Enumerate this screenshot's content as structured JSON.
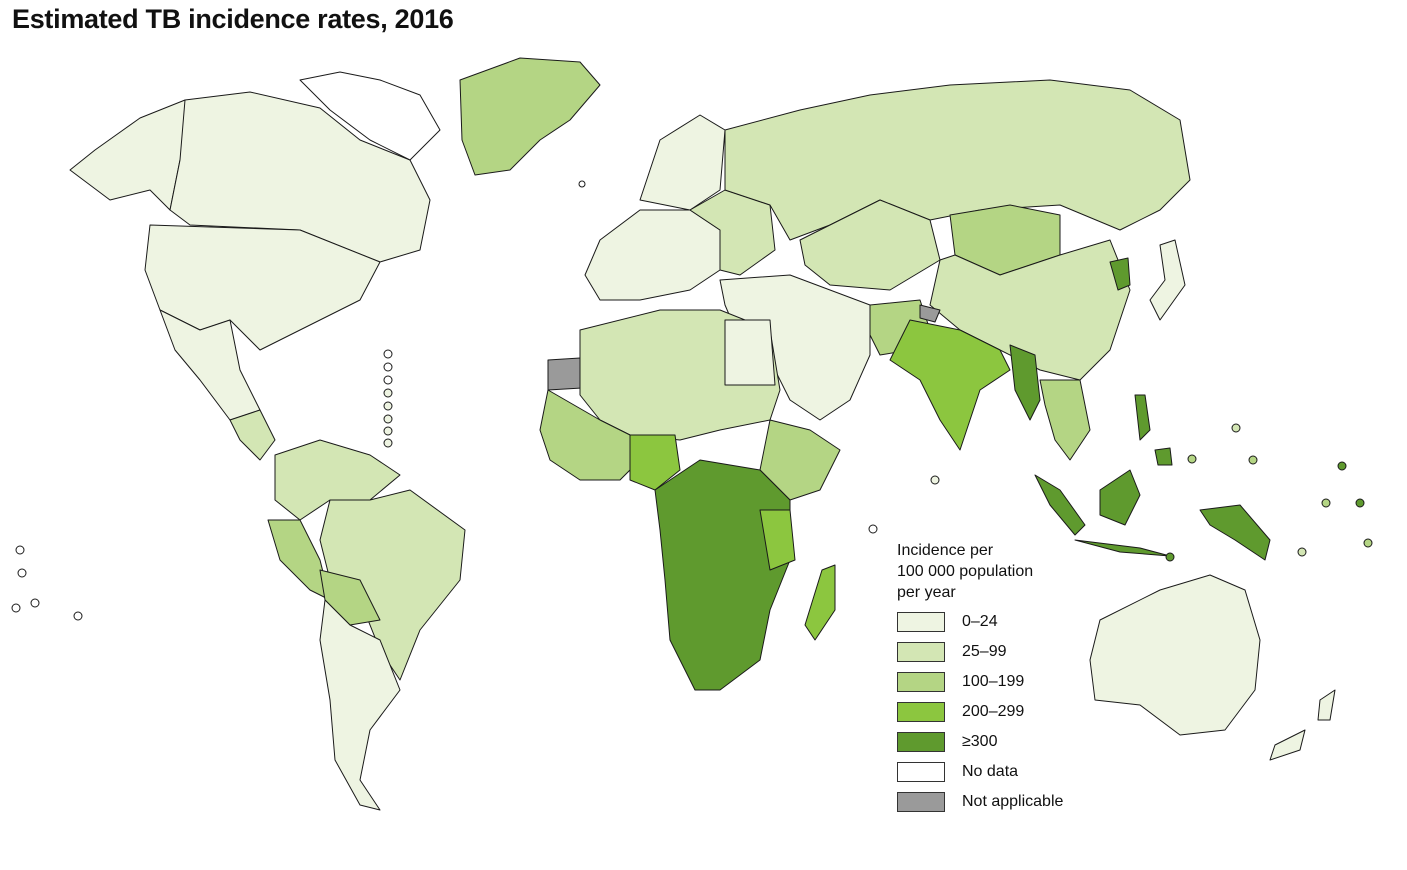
{
  "title": "Estimated TB incidence rates, 2016",
  "colors": {
    "c0": "#eef4e2",
    "c1": "#d3e6b4",
    "c2": "#b4d584",
    "c3": "#8cc63f",
    "c4": "#5f9a2e",
    "nodata": "#ffffff",
    "na": "#9a9a9a",
    "border": "#1a1a1a"
  },
  "legend": {
    "title": "Incidence per\n100 000 population\nper year",
    "items": [
      {
        "label": "0–24",
        "color": "#eef4e2"
      },
      {
        "label": "25–99",
        "color": "#d3e6b4"
      },
      {
        "label": "100–199",
        "color": "#b4d584"
      },
      {
        "label": "200–299",
        "color": "#8cc63f"
      },
      {
        "label": "≥300",
        "color": "#5f9a2e"
      },
      {
        "label": "No data",
        "color": "#ffffff"
      },
      {
        "label": "Not applicable",
        "color": "#9a9a9a"
      }
    ]
  }
}
